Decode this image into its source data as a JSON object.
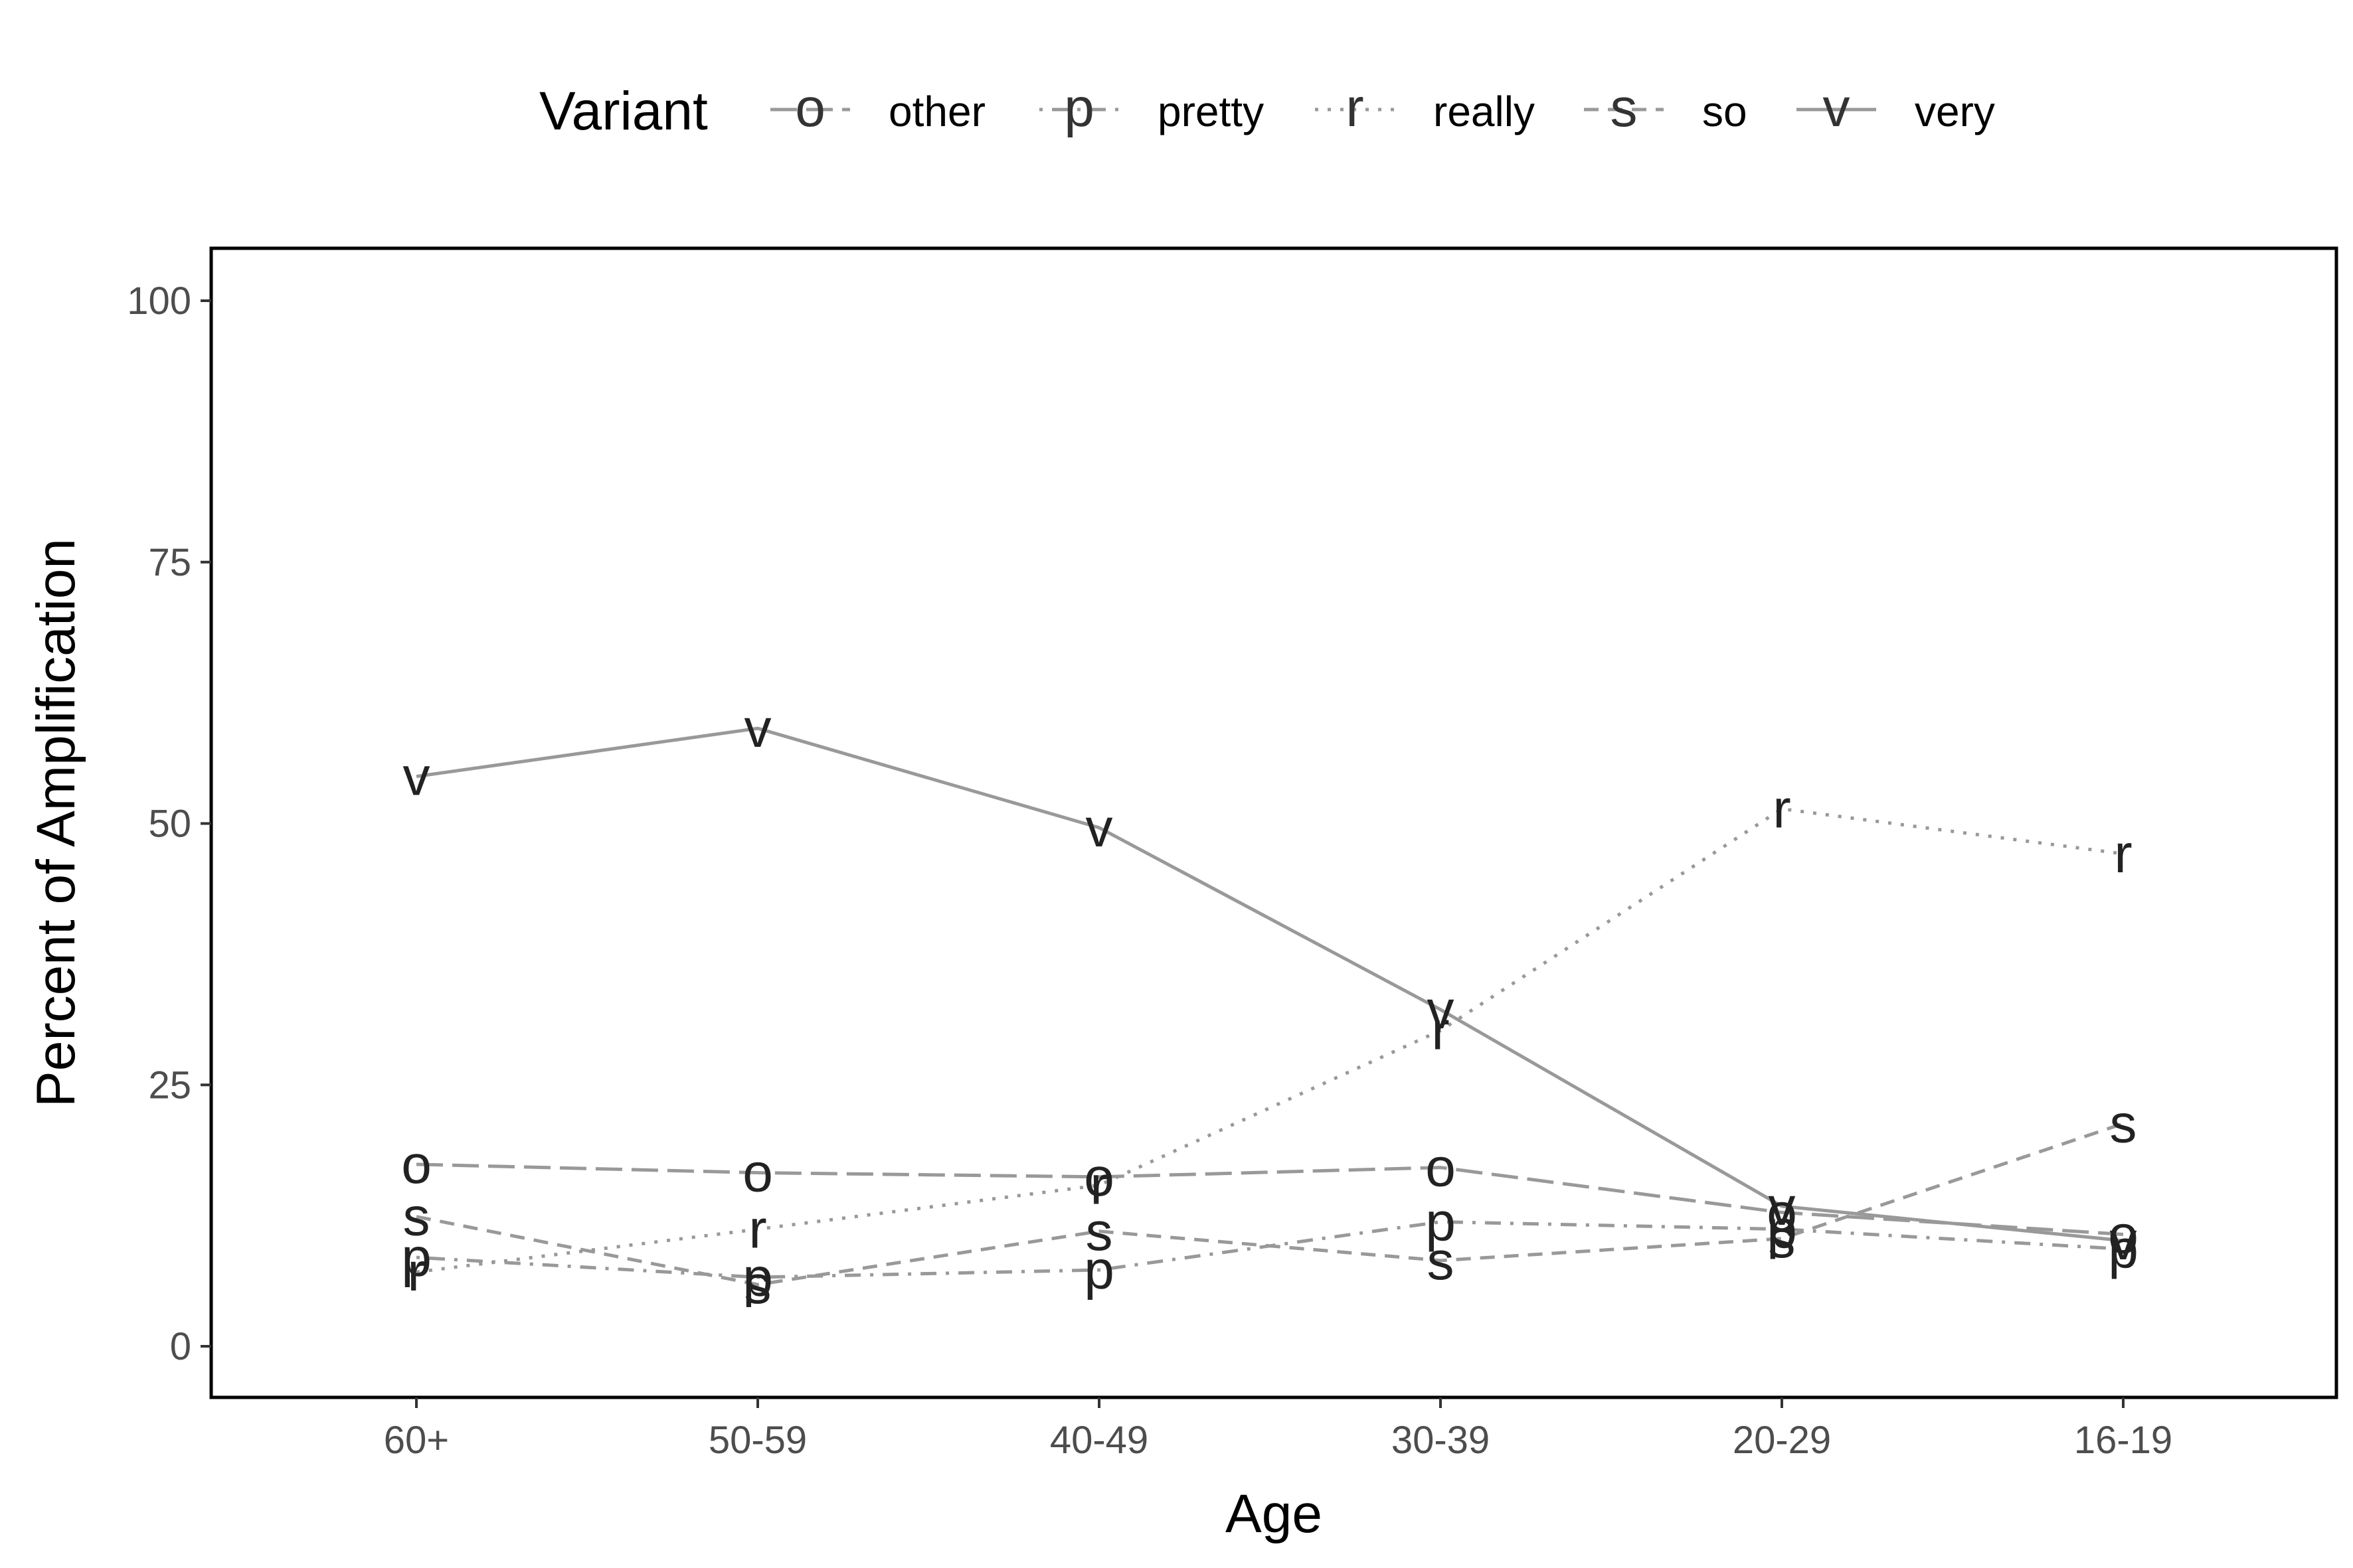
{
  "chart_data": {
    "type": "line",
    "xlabel": "Age",
    "ylabel": "Percent of Amplification",
    "categories": [
      "60+",
      "50-59",
      "40-49",
      "30-39",
      "20-29",
      "16-19"
    ],
    "ylim": [
      0,
      100
    ],
    "yticks": [
      0,
      25,
      50,
      75,
      100
    ],
    "legend": {
      "title": "Variant",
      "position": "top"
    },
    "grid": false,
    "series": [
      {
        "name": "other",
        "symbol": "o",
        "linestyle": "longdash",
        "color": "#999999",
        "values": [
          17.4,
          16.6,
          16.2,
          17.1,
          12.8,
          10.7
        ]
      },
      {
        "name": "pretty",
        "symbol": "p",
        "linestyle": "dotdash",
        "color": "#999999",
        "values": [
          8.5,
          6.6,
          7.3,
          11.9,
          11.2,
          9.3
        ]
      },
      {
        "name": "really",
        "symbol": "r",
        "linestyle": "dotted",
        "color": "#999999",
        "values": [
          7.1,
          11.2,
          15.4,
          30.2,
          51.4,
          47.1
        ]
      },
      {
        "name": "so",
        "symbol": "s",
        "linestyle": "dashed",
        "color": "#999999",
        "values": [
          12.4,
          5.9,
          11.0,
          8.2,
          10.3,
          21.3
        ]
      },
      {
        "name": "very",
        "symbol": "v",
        "linestyle": "solid",
        "color": "#999999",
        "values": [
          54.5,
          59.1,
          49.6,
          32.2,
          13.4,
          10.1
        ]
      }
    ]
  }
}
